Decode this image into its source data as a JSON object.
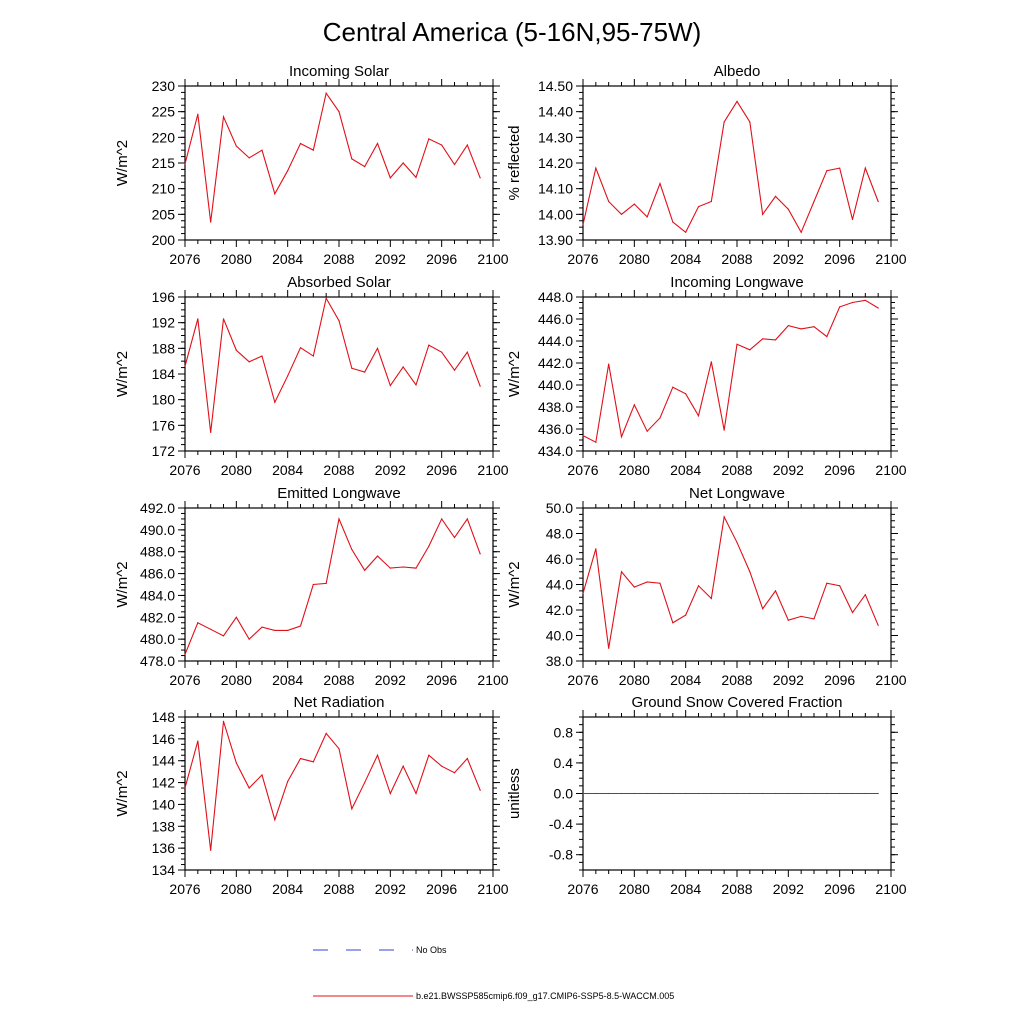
{
  "figure_title": "Central America (5-16N,95-75W)",
  "colors": {
    "model": "#e0101a",
    "obs": "#3344cc",
    "axis": "#000000"
  },
  "legend": {
    "obs_label": "No Obs",
    "model_label": "b.e21.BWSSP585cmip6.f09_g17.CMIP6-SSP5-8.5-WACCM.005"
  },
  "chart_data": [
    {
      "type": "line",
      "title": "Incoming Solar",
      "ylabel": "W/m^2",
      "xlim": [
        2076,
        2100
      ],
      "ylim": [
        200,
        230
      ],
      "xticks": [
        "2076",
        "2080",
        "2084",
        "2088",
        "2092",
        "2096",
        "2100"
      ],
      "yticks": [
        "200",
        "205",
        "210",
        "215",
        "220",
        "225",
        "230"
      ],
      "x": [
        2076,
        2077,
        2078,
        2079,
        2080,
        2081,
        2082,
        2083,
        2084,
        2085,
        2086,
        2087,
        2088,
        2089,
        2090,
        2091,
        2092,
        2093,
        2094,
        2095,
        2096,
        2097,
        2098,
        2099
      ],
      "series": [
        {
          "values": [
            214.8,
            224.5,
            203.5,
            224.0,
            218.3,
            216.0,
            217.5,
            209.0,
            213.5,
            218.8,
            217.5,
            228.6,
            225.0,
            215.8,
            214.3,
            218.8,
            212.1,
            215.0,
            212.2,
            219.7,
            218.5,
            214.7,
            218.5,
            212.1
          ]
        }
      ]
    },
    {
      "type": "line",
      "title": "Albedo",
      "ylabel": "% reflected",
      "xlim": [
        2076,
        2100
      ],
      "ylim": [
        13.9,
        14.5
      ],
      "xticks": [
        "2076",
        "2080",
        "2084",
        "2088",
        "2092",
        "2096",
        "2100"
      ],
      "yticks": [
        "13.90",
        "14.00",
        "14.10",
        "14.20",
        "14.30",
        "14.40",
        "14.50"
      ],
      "x": [
        2076,
        2077,
        2078,
        2079,
        2080,
        2081,
        2082,
        2083,
        2084,
        2085,
        2086,
        2087,
        2088,
        2089,
        2090,
        2091,
        2092,
        2093,
        2094,
        2095,
        2096,
        2097,
        2098,
        2099
      ],
      "series": [
        {
          "values": [
            13.96,
            14.18,
            14.05,
            14.0,
            14.04,
            13.99,
            14.12,
            13.97,
            13.93,
            14.03,
            14.05,
            14.36,
            14.44,
            14.36,
            14.0,
            14.07,
            14.02,
            13.93,
            14.05,
            14.17,
            14.18,
            13.98,
            14.18,
            14.05
          ]
        }
      ]
    },
    {
      "type": "line",
      "title": "Absorbed Solar",
      "ylabel": "W/m^2",
      "xlim": [
        2076,
        2100
      ],
      "ylim": [
        172,
        196
      ],
      "xticks": [
        "2076",
        "2080",
        "2084",
        "2088",
        "2092",
        "2096",
        "2100"
      ],
      "yticks": [
        "172",
        "176",
        "180",
        "184",
        "188",
        "192",
        "196"
      ],
      "x": [
        2076,
        2077,
        2078,
        2079,
        2080,
        2081,
        2082,
        2083,
        2084,
        2085,
        2086,
        2087,
        2088,
        2089,
        2090,
        2091,
        2092,
        2093,
        2094,
        2095,
        2096,
        2097,
        2098,
        2099
      ],
      "series": [
        {
          "values": [
            185.2,
            192.6,
            174.9,
            192.6,
            187.7,
            185.9,
            186.8,
            179.6,
            183.7,
            188.1,
            186.8,
            195.8,
            192.3,
            184.9,
            184.3,
            188.0,
            182.2,
            185.1,
            182.3,
            188.5,
            187.4,
            184.6,
            187.4,
            182.1
          ]
        }
      ]
    },
    {
      "type": "line",
      "title": "Incoming Longwave",
      "ylabel": "W/m^2",
      "xlim": [
        2076,
        2100
      ],
      "ylim": [
        434,
        448
      ],
      "xticks": [
        "2076",
        "2080",
        "2084",
        "2088",
        "2092",
        "2096",
        "2100"
      ],
      "yticks": [
        "434.0",
        "436.0",
        "438.0",
        "440.0",
        "442.0",
        "444.0",
        "446.0",
        "448.0"
      ],
      "x": [
        2076,
        2077,
        2078,
        2079,
        2080,
        2081,
        2082,
        2083,
        2084,
        2085,
        2086,
        2087,
        2088,
        2089,
        2090,
        2091,
        2092,
        2093,
        2094,
        2095,
        2096,
        2097,
        2098,
        2099
      ],
      "series": [
        {
          "values": [
            435.4,
            434.8,
            441.9,
            435.3,
            438.2,
            435.8,
            437.0,
            439.8,
            439.2,
            437.2,
            442.1,
            435.9,
            443.7,
            443.2,
            444.2,
            444.1,
            445.4,
            445.1,
            445.3,
            444.4,
            447.1,
            447.5,
            447.7,
            447.0
          ]
        }
      ]
    },
    {
      "type": "line",
      "title": "Emitted Longwave",
      "ylabel": "W/m^2",
      "xlim": [
        2076,
        2100
      ],
      "ylim": [
        478,
        492
      ],
      "xticks": [
        "2076",
        "2080",
        "2084",
        "2088",
        "2092",
        "2096",
        "2100"
      ],
      "yticks": [
        "478.0",
        "480.0",
        "482.0",
        "484.0",
        "486.0",
        "488.0",
        "490.0",
        "492.0"
      ],
      "x": [
        2076,
        2077,
        2078,
        2079,
        2080,
        2081,
        2082,
        2083,
        2084,
        2085,
        2086,
        2087,
        2088,
        2089,
        2090,
        2091,
        2092,
        2093,
        2094,
        2095,
        2096,
        2097,
        2098,
        2099
      ],
      "series": [
        {
          "values": [
            478.6,
            481.5,
            480.9,
            480.3,
            482.0,
            480.0,
            481.1,
            480.8,
            480.8,
            481.2,
            485.0,
            485.1,
            491.0,
            488.2,
            486.3,
            487.6,
            486.5,
            486.6,
            486.5,
            488.5,
            491.0,
            489.3,
            491.0,
            487.8
          ]
        }
      ]
    },
    {
      "type": "line",
      "title": "Net Longwave",
      "ylabel": "W/m^2",
      "xlim": [
        2076,
        2100
      ],
      "ylim": [
        38,
        50
      ],
      "xticks": [
        "2076",
        "2080",
        "2084",
        "2088",
        "2092",
        "2096",
        "2100"
      ],
      "yticks": [
        "38.0",
        "40.0",
        "42.0",
        "44.0",
        "46.0",
        "48.0",
        "50.0"
      ],
      "x": [
        2076,
        2077,
        2078,
        2079,
        2080,
        2081,
        2082,
        2083,
        2084,
        2085,
        2086,
        2087,
        2088,
        2089,
        2090,
        2091,
        2092,
        2093,
        2094,
        2095,
        2096,
        2097,
        2098,
        2099
      ],
      "series": [
        {
          "values": [
            43.3,
            46.8,
            39.0,
            45.0,
            43.8,
            44.2,
            44.1,
            41.0,
            41.6,
            43.9,
            42.9,
            49.3,
            47.3,
            45.0,
            42.1,
            43.5,
            41.2,
            41.5,
            41.3,
            44.1,
            43.9,
            41.8,
            43.2,
            40.8
          ]
        }
      ]
    },
    {
      "type": "line",
      "title": "Net Radiation",
      "ylabel": "W/m^2",
      "xlim": [
        2076,
        2100
      ],
      "ylim": [
        134,
        148
      ],
      "xticks": [
        "2076",
        "2080",
        "2084",
        "2088",
        "2092",
        "2096",
        "2100"
      ],
      "yticks": [
        "134",
        "136",
        "138",
        "140",
        "142",
        "144",
        "146",
        "148"
      ],
      "x": [
        2076,
        2077,
        2078,
        2079,
        2080,
        2081,
        2082,
        2083,
        2084,
        2085,
        2086,
        2087,
        2088,
        2089,
        2090,
        2091,
        2092,
        2093,
        2094,
        2095,
        2096,
        2097,
        2098,
        2099
      ],
      "series": [
        {
          "values": [
            141.5,
            145.8,
            135.8,
            147.6,
            143.8,
            141.5,
            142.7,
            138.6,
            142.1,
            144.2,
            143.9,
            146.5,
            145.1,
            139.6,
            142.0,
            144.5,
            141.0,
            143.5,
            141.0,
            144.5,
            143.5,
            142.9,
            144.2,
            141.3
          ]
        }
      ]
    },
    {
      "type": "line",
      "title": "Ground Snow Covered Fraction",
      "ylabel": "unitless",
      "xlim": [
        2076,
        2100
      ],
      "ylim": [
        -1.0,
        1.0
      ],
      "xticks": [
        "2076",
        "2080",
        "2084",
        "2088",
        "2092",
        "2096",
        "2100"
      ],
      "yticks": [
        "-0.8",
        "-0.4",
        "0.0",
        "0.4",
        "0.8"
      ],
      "ytick_values": [
        -0.8,
        -0.4,
        0.0,
        0.4,
        0.8
      ],
      "x": [
        2076,
        2077,
        2078,
        2079,
        2080,
        2081,
        2082,
        2083,
        2084,
        2085,
        2086,
        2087,
        2088,
        2089,
        2090,
        2091,
        2092,
        2093,
        2094,
        2095,
        2096,
        2097,
        2098,
        2099
      ],
      "series": [
        {
          "values": [
            0,
            0,
            0,
            0,
            0,
            0,
            0,
            0,
            0,
            0,
            0,
            0,
            0,
            0,
            0,
            0,
            0,
            0,
            0,
            0,
            0,
            0,
            0,
            0
          ]
        }
      ]
    }
  ]
}
